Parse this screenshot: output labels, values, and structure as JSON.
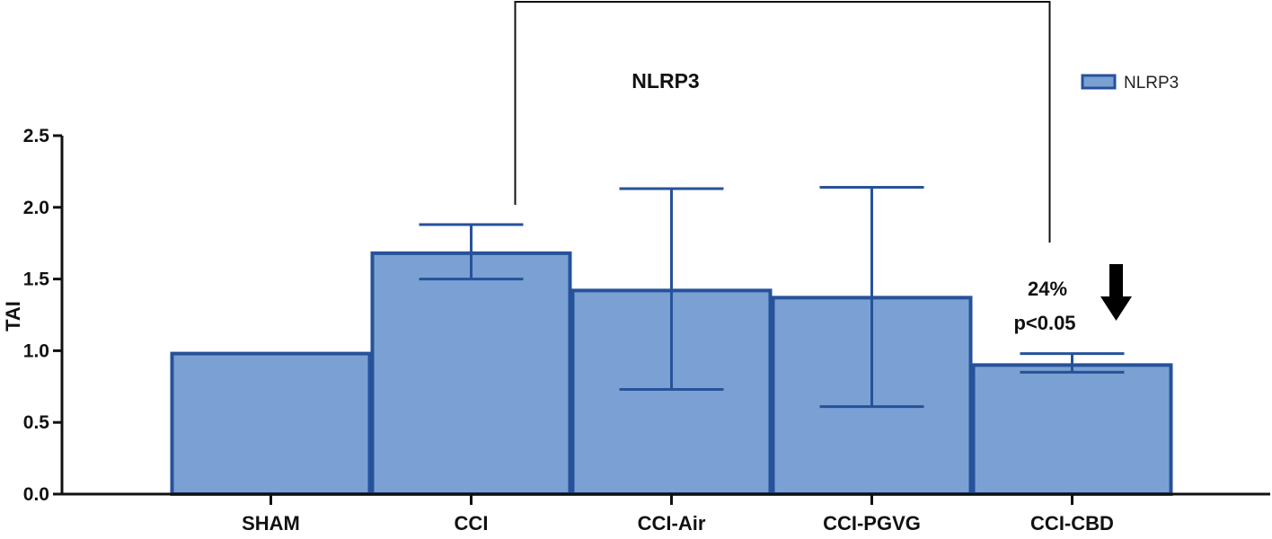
{
  "chart_data": {
    "type": "bar",
    "title": "NLRP3",
    "ylabel": "TAI",
    "xlabel": "",
    "categories": [
      "SHAM",
      "CCI",
      "CCI-Air",
      "CCI-PGVG",
      "CCI-CBD"
    ],
    "series": [
      {
        "name": "NLRP3",
        "values": [
          0.98,
          1.68,
          1.42,
          1.37,
          0.9
        ],
        "error_low": [
          null,
          1.5,
          0.73,
          0.61,
          0.85
        ],
        "error_high": [
          null,
          1.88,
          2.13,
          2.14,
          0.98
        ]
      }
    ],
    "ylim": [
      0,
      2.5
    ],
    "yticks": [
      "0.0",
      "0.5",
      "1.0",
      "1.5",
      "2.0",
      "2.5"
    ],
    "legend_position": "top-right",
    "grid": false,
    "comparison_bracket": {
      "from": "CCI",
      "to": "CCI-CBD"
    },
    "annotations": {
      "percent": "24%",
      "pvalue": "p<0.05",
      "arrow": "down-arrow"
    },
    "colors": {
      "bar_fill": "#7ba1d4",
      "bar_edge": "#26529a",
      "axis": "#111111"
    }
  }
}
